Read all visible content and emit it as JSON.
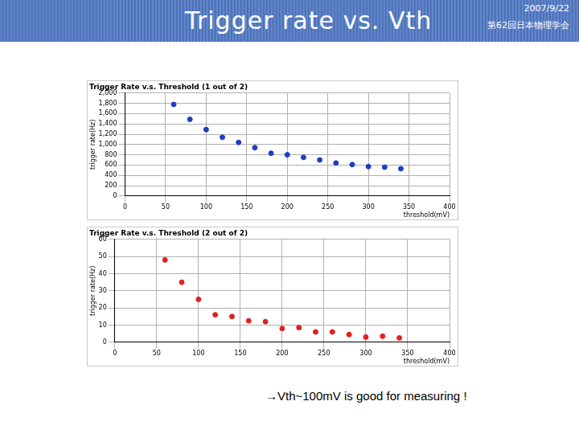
{
  "slide": {
    "title": "Trigger rate vs. Vth",
    "date": "2007/9/22",
    "event": "第62回日本物理学会",
    "note": "→Vth~100mV is good for measuring !"
  },
  "chart_data": [
    {
      "type": "scatter",
      "title": "Trigger Rate v.s. Threshold (1 out of 2)",
      "x_label": "threshold(mV)",
      "y_label": "trigger rate(Hz)",
      "x": [
        60,
        80,
        100,
        120,
        140,
        160,
        180,
        200,
        220,
        240,
        260,
        280,
        300,
        320,
        340
      ],
      "values": [
        1780,
        1490,
        1290,
        1140,
        1040,
        940,
        830,
        800,
        750,
        700,
        640,
        610,
        570,
        560,
        530
      ],
      "color": "#1f3fc0",
      "marker": "circle",
      "xlim": [
        0,
        400
      ],
      "xticks": [
        0,
        50,
        100,
        150,
        200,
        250,
        300,
        350,
        400
      ],
      "ylim": [
        0,
        2000
      ],
      "yticks": [
        0,
        200,
        400,
        600,
        800,
        1000,
        1200,
        1400,
        1600,
        1800,
        2000
      ],
      "grid": true
    },
    {
      "type": "scatter",
      "title": "Trigger Rate v.s. Threshold (2 out of 2)",
      "x_label": "threshold(mV)",
      "y_label": "trigger rate(Hz)",
      "x": [
        60,
        80,
        100,
        120,
        140,
        160,
        180,
        200,
        220,
        240,
        260,
        280,
        300,
        320,
        340
      ],
      "values": [
        48,
        35,
        25,
        16,
        15,
        12.5,
        12,
        8,
        8.5,
        6,
        6,
        4.5,
        3,
        3.5,
        2.5
      ],
      "color": "#e02020",
      "marker": "circle",
      "xlim": [
        0,
        400
      ],
      "xticks": [
        0,
        50,
        100,
        150,
        200,
        250,
        300,
        350,
        400
      ],
      "ylim": [
        0,
        60
      ],
      "yticks": [
        0,
        10,
        20,
        30,
        40,
        50,
        60
      ],
      "grid": true
    }
  ]
}
